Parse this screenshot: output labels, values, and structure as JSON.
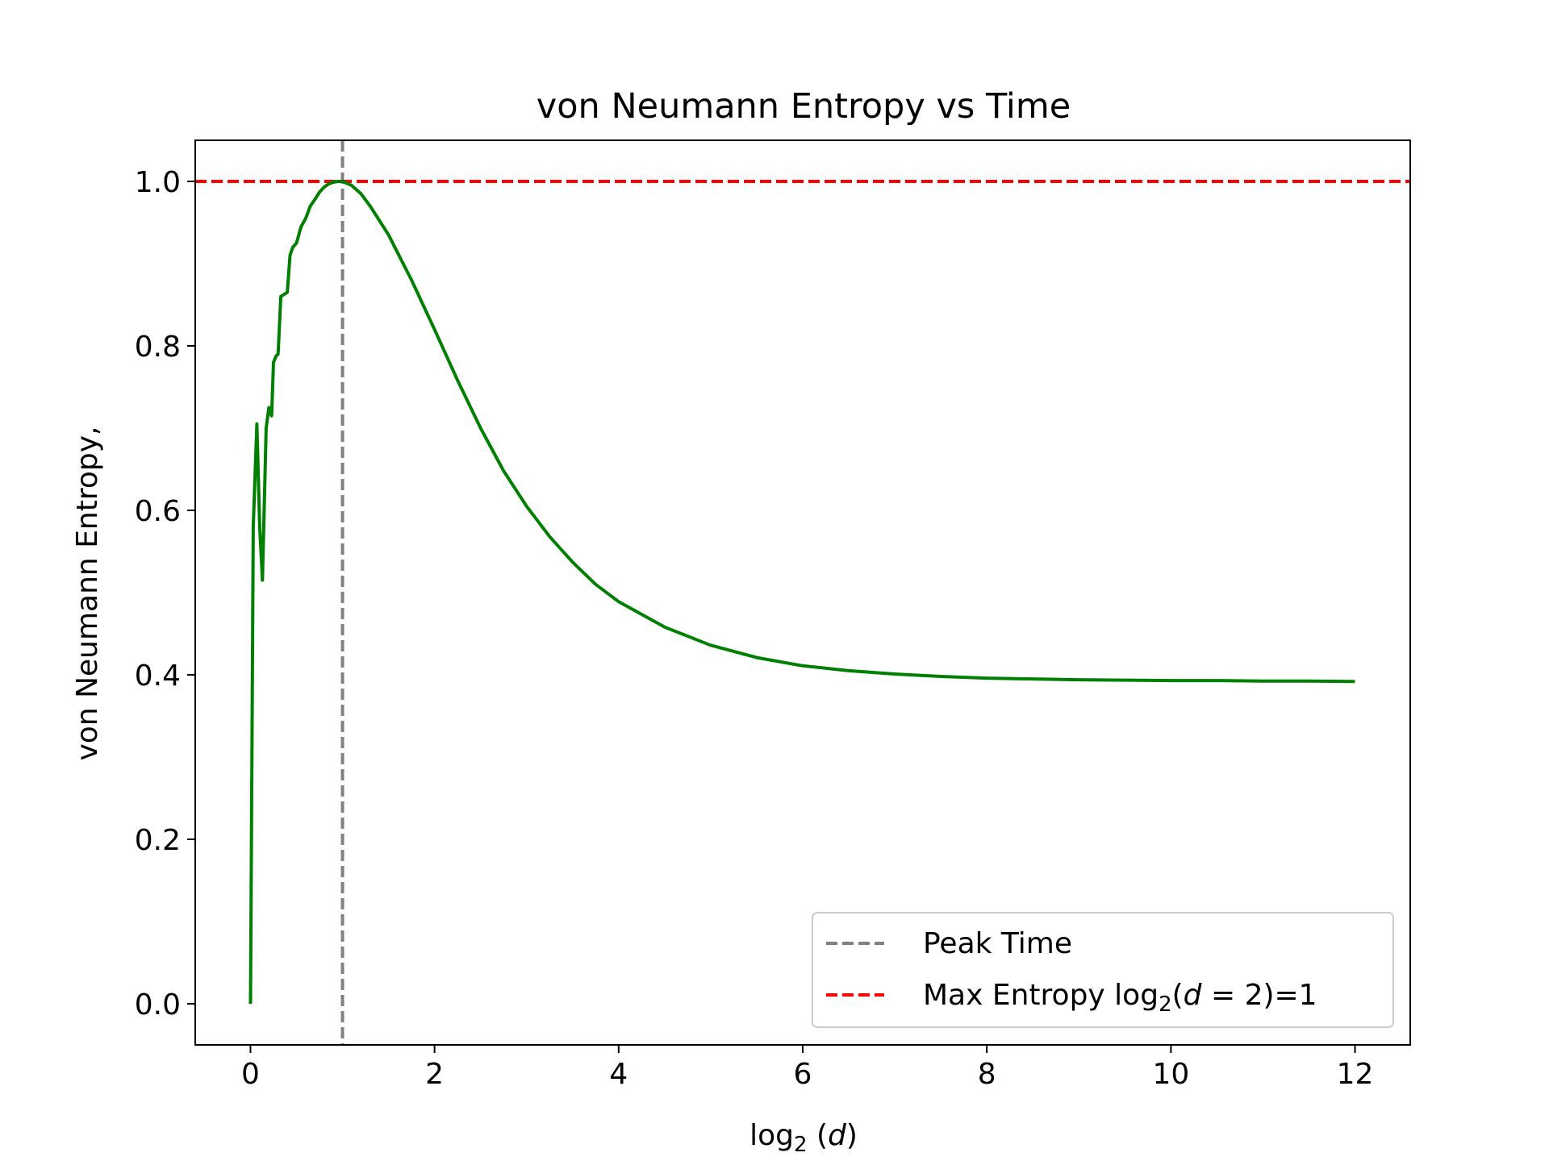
{
  "chart_data": {
    "type": "line",
    "title": "von Neumann Entropy vs Time",
    "xlabel": {
      "prefix": "log",
      "sub": "2",
      "arg_open": " (",
      "arg": "d",
      "arg_close": ")"
    },
    "ylabel": "von Neumann Entropy,",
    "xlim": [
      -0.6,
      12.6
    ],
    "ylim": [
      -0.05,
      1.05
    ],
    "xticks": [
      0,
      2,
      4,
      6,
      8,
      10,
      12
    ],
    "xtick_labels": [
      "0",
      "2",
      "4",
      "6",
      "8",
      "10",
      "12"
    ],
    "yticks": [
      0.0,
      0.2,
      0.4,
      0.6,
      0.8,
      1.0
    ],
    "ytick_labels": [
      "0.0",
      "0.2",
      "0.4",
      "0.6",
      "0.8",
      "1.0"
    ],
    "grid": false,
    "legend_position": "lower-right",
    "series": [
      {
        "color": "#008000",
        "style": "solid",
        "x": [
          0,
          0.03,
          0.07,
          0.1,
          0.13,
          0.17,
          0.2,
          0.23,
          0.25,
          0.28,
          0.3,
          0.33,
          0.37,
          0.4,
          0.43,
          0.46,
          0.5,
          0.55,
          0.6,
          0.65,
          0.7,
          0.75,
          0.8,
          0.85,
          0.9,
          0.95,
          1.0,
          1.1,
          1.2,
          1.3,
          1.5,
          1.75,
          2.0,
          2.25,
          2.5,
          2.75,
          3.0,
          3.25,
          3.5,
          3.75,
          4.0,
          4.5,
          5.0,
          5.5,
          6.0,
          6.5,
          7.0,
          7.5,
          8.0,
          8.5,
          9.0,
          9.5,
          10.0,
          10.5,
          11.0,
          11.5,
          12.0
        ],
        "y": [
          0.0,
          0.58,
          0.705,
          0.58,
          0.515,
          0.7,
          0.725,
          0.715,
          0.78,
          0.788,
          0.79,
          0.86,
          0.863,
          0.865,
          0.91,
          0.92,
          0.925,
          0.945,
          0.955,
          0.97,
          0.978,
          0.987,
          0.993,
          0.997,
          0.999,
          1.0,
          1.0,
          0.995,
          0.985,
          0.97,
          0.935,
          0.88,
          0.82,
          0.758,
          0.7,
          0.648,
          0.605,
          0.568,
          0.537,
          0.51,
          0.489,
          0.458,
          0.436,
          0.421,
          0.411,
          0.405,
          0.401,
          0.398,
          0.396,
          0.395,
          0.394,
          0.3935,
          0.393,
          0.393,
          0.3925,
          0.3925,
          0.392
        ]
      },
      {
        "name": "Peak Time",
        "color": "#808080",
        "style": "dashed",
        "orientation": "vertical",
        "x": 1.0
      },
      {
        "name": "Max Entropy",
        "color": "#ff0000",
        "style": "dashed",
        "orientation": "horizontal",
        "y": 1.0
      }
    ],
    "legend": [
      {
        "label": "Peak Time",
        "color": "#808080"
      },
      {
        "label_prefix": "Max Entropy log",
        "label_sub": "2",
        "label_mid": "(",
        "label_var": "d",
        "label_eq": " = 2)=1",
        "color": "#ff0000"
      }
    ]
  }
}
